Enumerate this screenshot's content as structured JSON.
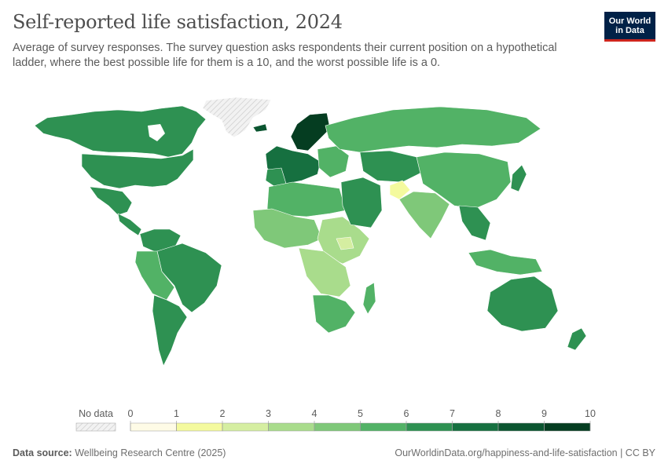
{
  "header": {
    "title": "Self-reported life satisfaction, 2024",
    "subtitle": "Average of survey responses. The survey question asks respondents their current position on a hypothetical ladder, where the best possible life for them is a 10, and the worst possible life is a 0."
  },
  "logo": {
    "line1": "Our World",
    "line2": "in Data"
  },
  "legend": {
    "no_data_label": "No data",
    "ticks": [
      "0",
      "1",
      "2",
      "3",
      "4",
      "5",
      "6",
      "7",
      "8",
      "9",
      "10"
    ],
    "bins": [
      {
        "from": 0,
        "to": 1,
        "color": "#fefbe6"
      },
      {
        "from": 1,
        "to": 2,
        "color": "#f4fa9e"
      },
      {
        "from": 2,
        "to": 3,
        "color": "#d5eea1"
      },
      {
        "from": 3,
        "to": 4,
        "color": "#a9dc8c"
      },
      {
        "from": 4,
        "to": 5,
        "color": "#7fc879"
      },
      {
        "from": 5,
        "to": 6,
        "color": "#52b266"
      },
      {
        "from": 6,
        "to": 7,
        "color": "#2e9152"
      },
      {
        "from": 7,
        "to": 8,
        "color": "#167040"
      },
      {
        "from": 8,
        "to": 9,
        "color": "#0b5530"
      },
      {
        "from": 9,
        "to": 10,
        "color": "#053d21"
      }
    ]
  },
  "footer": {
    "source_label": "Data source:",
    "source_value": "Wellbeing Research Centre (2025)",
    "credit": "OurWorldinData.org/happiness-and-life-satisfaction | CC BY"
  }
}
